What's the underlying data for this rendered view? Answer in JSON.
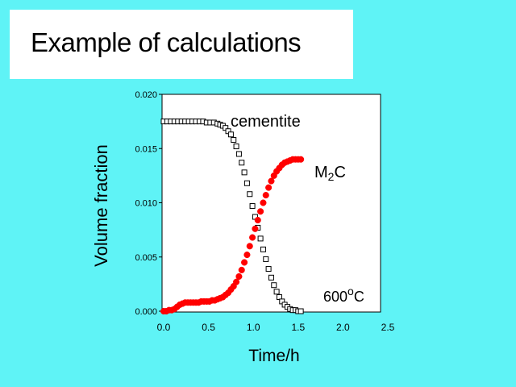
{
  "slide": {
    "title": "Example of calculations"
  },
  "colors": {
    "background": "#5ff3f6",
    "cementite_marker": "#000000",
    "m2c_marker": "#ff0000"
  },
  "chart_data": {
    "type": "scatter",
    "title": "",
    "xlabel": "Time/h",
    "ylabel": "Volume fraction",
    "xlim": [
      0.0,
      2.5
    ],
    "ylim": [
      0.0,
      0.02
    ],
    "x_ticks": [
      "0.0",
      "0.5",
      "1.0",
      "1.5",
      "2.0",
      "2.5"
    ],
    "y_ticks": [
      "0.000",
      "0.005",
      "0.010",
      "0.015",
      "0.020"
    ],
    "grid": false,
    "legend": "none",
    "annotations": {
      "cementite": "cementite",
      "m2c_main": "M",
      "m2c_sub": "2",
      "m2c_tail": "C",
      "temp_main": "600",
      "temp_sup": "o",
      "temp_tail": "C"
    },
    "series": [
      {
        "name": "cementite",
        "marker": "open-square",
        "x": [
          0.0,
          0.04,
          0.08,
          0.12,
          0.16,
          0.2,
          0.24,
          0.28,
          0.32,
          0.36,
          0.4,
          0.44,
          0.48,
          0.52,
          0.56,
          0.6,
          0.63,
          0.66,
          0.69,
          0.72,
          0.75,
          0.78,
          0.81,
          0.84,
          0.87,
          0.9,
          0.93,
          0.96,
          0.99,
          1.02,
          1.05,
          1.08,
          1.11,
          1.14,
          1.17,
          1.2,
          1.23,
          1.26,
          1.29,
          1.32,
          1.35,
          1.38,
          1.41,
          1.44,
          1.47,
          1.5,
          1.53
        ],
        "y": [
          0.0175,
          0.0175,
          0.0175,
          0.0175,
          0.0175,
          0.0175,
          0.0175,
          0.0175,
          0.0175,
          0.0175,
          0.0175,
          0.0175,
          0.0174,
          0.0174,
          0.0174,
          0.0173,
          0.0172,
          0.0171,
          0.0169,
          0.0166,
          0.0163,
          0.0158,
          0.0152,
          0.0145,
          0.0137,
          0.0128,
          0.0118,
          0.0108,
          0.0097,
          0.0087,
          0.0077,
          0.0067,
          0.0057,
          0.0048,
          0.0039,
          0.0031,
          0.0024,
          0.0018,
          0.0013,
          0.0009,
          0.0006,
          0.0004,
          0.0002,
          0.0001,
          0.0001,
          0.0,
          0.0
        ]
      },
      {
        "name": "M2C",
        "marker": "filled-circle",
        "x": [
          0.0,
          0.03,
          0.06,
          0.09,
          0.12,
          0.15,
          0.18,
          0.21,
          0.24,
          0.27,
          0.3,
          0.33,
          0.36,
          0.39,
          0.42,
          0.45,
          0.48,
          0.51,
          0.54,
          0.57,
          0.6,
          0.63,
          0.66,
          0.69,
          0.72,
          0.75,
          0.78,
          0.81,
          0.84,
          0.87,
          0.9,
          0.93,
          0.96,
          0.99,
          1.02,
          1.05,
          1.08,
          1.11,
          1.14,
          1.17,
          1.2,
          1.23,
          1.26,
          1.29,
          1.32,
          1.35,
          1.38,
          1.41,
          1.44,
          1.47,
          1.5,
          1.53
        ],
        "y": [
          0.0,
          0.0,
          0.0001,
          0.0001,
          0.0002,
          0.0004,
          0.0006,
          0.0007,
          0.0008,
          0.0008,
          0.0008,
          0.0008,
          0.0008,
          0.0008,
          0.0009,
          0.0009,
          0.0009,
          0.0009,
          0.001,
          0.001,
          0.0011,
          0.0012,
          0.0013,
          0.0015,
          0.0017,
          0.002,
          0.0023,
          0.0027,
          0.0032,
          0.0038,
          0.0045,
          0.0052,
          0.006,
          0.0068,
          0.0076,
          0.0084,
          0.0092,
          0.01,
          0.0107,
          0.0114,
          0.012,
          0.0125,
          0.0129,
          0.0132,
          0.0135,
          0.0137,
          0.0138,
          0.0139,
          0.014,
          0.014,
          0.014,
          0.014
        ]
      }
    ]
  }
}
